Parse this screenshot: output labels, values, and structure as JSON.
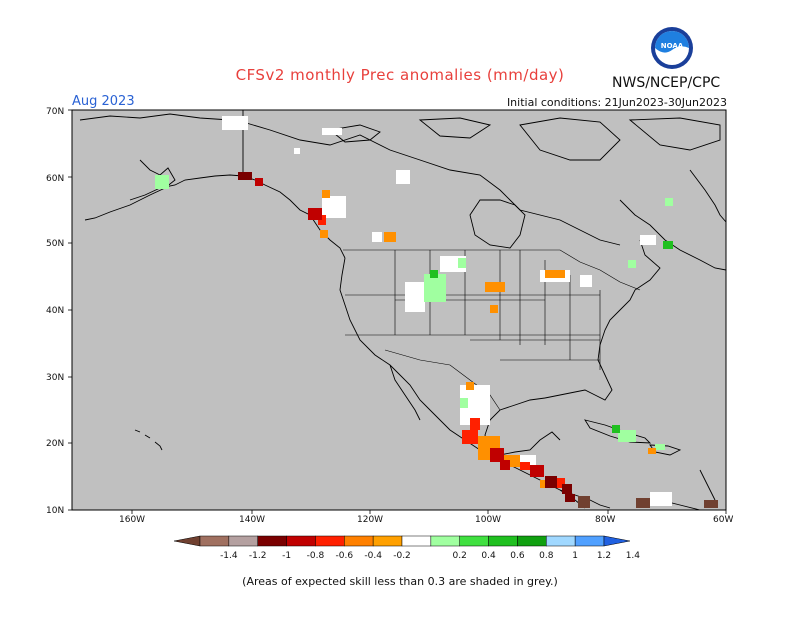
{
  "header": {
    "title": "CFSv2 monthly Prec anomalies (mm/day)",
    "agency": "NWS/NCEP/CPC",
    "month": "Aug 2023",
    "initial_conditions": "Initial conditions: 21Jun2023-30Jun2023",
    "logo_text": "NOAA"
  },
  "map": {
    "lat_labels": [
      "70N",
      "60N",
      "50N",
      "40N",
      "30N",
      "20N",
      "10N"
    ],
    "lon_labels": [
      "160W",
      "140W",
      "120W",
      "100W",
      "80W",
      "60W"
    ],
    "background_color": "#c0c0c0"
  },
  "colorbar": {
    "labels": [
      "-1.4",
      "-1.2",
      "-1",
      "-0.8",
      "-0.6",
      "-0.4",
      "-0.2",
      "0.2",
      "0.4",
      "0.6",
      "0.8",
      "1",
      "1.2",
      "1.4"
    ],
    "colors": [
      "#704030",
      "#a07060",
      "#b4a0a0",
      "#7a0000",
      "#c00000",
      "#ff2000",
      "#ff8000",
      "#ffa000",
      "#ffffff",
      "#a0ffa0",
      "#40e040",
      "#20c020",
      "#10a010",
      "#a0d8ff",
      "#50a0ff",
      "#2060e0"
    ],
    "note": "(Areas of expected skill less than 0.3 are shaded in grey.)"
  }
}
